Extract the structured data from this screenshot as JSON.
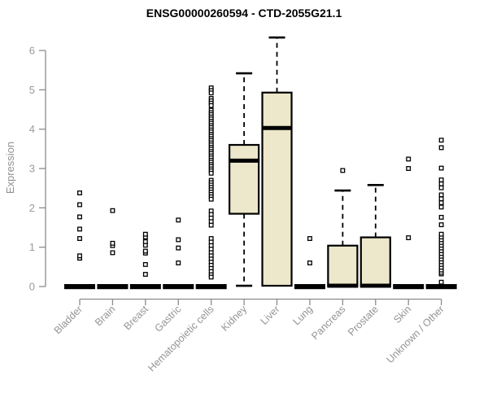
{
  "chart_data": {
    "type": "boxplot",
    "title": "ENSG00000260594 - CTD-2055G21.1",
    "ylabel": "Expression",
    "xlabel": "",
    "ylim": [
      0,
      6.45
    ],
    "yticks": [
      0,
      1,
      2,
      3,
      4,
      5,
      6
    ],
    "grid": false,
    "legend": "none",
    "categories": [
      "Bladder",
      "Brain",
      "Breast",
      "Gastric",
      "Hematopoietic cells",
      "Kidney",
      "Liver",
      "Lung",
      "Pancreas",
      "Prostate",
      "Skin",
      "Unknown / Other"
    ],
    "series": [
      {
        "category": "Bladder",
        "q1": 0,
        "median": 0,
        "q3": 0,
        "whisker_low": 0,
        "whisker_high": 0,
        "outliers": [
          0.72,
          0.78,
          1.22,
          1.46,
          1.77,
          2.08,
          2.38
        ]
      },
      {
        "category": "Brain",
        "q1": 0,
        "median": 0,
        "q3": 0,
        "whisker_low": 0,
        "whisker_high": 0,
        "outliers": [
          0.86,
          1.04,
          1.1,
          1.93
        ]
      },
      {
        "category": "Breast",
        "q1": 0,
        "median": 0,
        "q3": 0,
        "whisker_low": 0,
        "whisker_high": 0,
        "outliers": [
          0.31,
          0.56,
          0.85,
          0.9,
          1.05,
          1.14,
          1.26,
          1.33
        ]
      },
      {
        "category": "Gastric",
        "q1": 0,
        "median": 0,
        "q3": 0,
        "whisker_low": 0,
        "whisker_high": 0,
        "outliers": [
          0.6,
          0.98,
          1.19,
          1.69
        ]
      },
      {
        "category": "Hematopoietic cells",
        "q1": 0,
        "median": 0,
        "q3": 0,
        "whisker_low": 0,
        "whisker_high": 0,
        "outliers": [
          5.05,
          4.98,
          4.92,
          4.78,
          4.72,
          4.66,
          4.6,
          4.48,
          4.42,
          4.37,
          4.31,
          4.26,
          4.2,
          4.15,
          4.09,
          4.04,
          3.98,
          3.93,
          3.87,
          3.82,
          3.76,
          3.71,
          3.65,
          3.6,
          3.54,
          3.49,
          3.43,
          3.38,
          3.32,
          3.27,
          3.21,
          3.16,
          3.1,
          3.05,
          2.99,
          2.94,
          2.88,
          2.7,
          2.64,
          2.58,
          2.52,
          2.46,
          2.4,
          2.34,
          2.28,
          2.22,
          1.92,
          1.83,
          1.74,
          1.65,
          1.56,
          1.22,
          1.13,
          1.04,
          0.95,
          0.86,
          0.78,
          0.7,
          0.62,
          0.54,
          0.46,
          0.38,
          0.3,
          0.24
        ]
      },
      {
        "category": "Kidney",
        "q1": 1.85,
        "median": 3.2,
        "q3": 3.6,
        "whisker_low": 0.02,
        "whisker_high": 5.42,
        "outliers": []
      },
      {
        "category": "Liver",
        "q1": 0.02,
        "median": 4.03,
        "q3": 4.93,
        "whisker_low": 0.02,
        "whisker_high": 6.33,
        "outliers": []
      },
      {
        "category": "Lung",
        "q1": 0,
        "median": 0,
        "q3": 0,
        "whisker_low": 0,
        "whisker_high": 0,
        "outliers": [
          0.6,
          1.22
        ]
      },
      {
        "category": "Pancreas",
        "q1": 0.02,
        "median": 0.02,
        "q3": 1.04,
        "whisker_low": 0.02,
        "whisker_high": 2.44,
        "outliers": [
          2.95
        ]
      },
      {
        "category": "Prostate",
        "q1": 0.02,
        "median": 0.02,
        "q3": 1.25,
        "whisker_low": 0.02,
        "whisker_high": 2.58,
        "outliers": []
      },
      {
        "category": "Skin",
        "q1": 0,
        "median": 0,
        "q3": 0,
        "whisker_low": 0,
        "whisker_high": 0,
        "outliers": [
          1.24,
          3.0,
          3.24
        ]
      },
      {
        "category": "Unknown / Other",
        "q1": 0,
        "median": 0,
        "q3": 0,
        "whisker_low": 0,
        "whisker_high": 0,
        "outliers": [
          0.11,
          0.32,
          0.36,
          0.42,
          0.49,
          0.56,
          0.63,
          0.7,
          0.77,
          0.84,
          0.91,
          0.98,
          1.05,
          1.12,
          1.19,
          1.26,
          1.33,
          1.57,
          1.76,
          2.02,
          2.13,
          2.23,
          2.33,
          2.51,
          2.61,
          2.71,
          3.01,
          3.53,
          3.72
        ]
      }
    ],
    "colors": {
      "box_fill": "#EDE7CB",
      "box_border": "#000000",
      "median": "#000000",
      "axis": "#8C8C8C",
      "tick_label": "#9A9A9A",
      "category_label": "#949494",
      "title": "#000000",
      "outlier_fill": "#FFFFFF"
    }
  }
}
